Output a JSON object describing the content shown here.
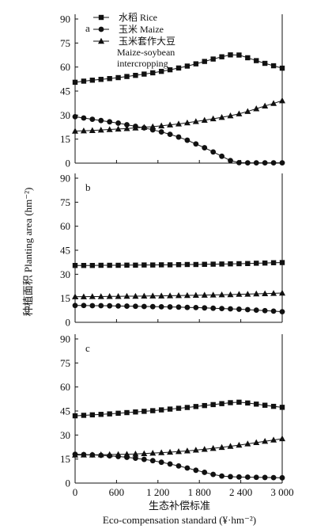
{
  "chart_data": {
    "type": "line",
    "ylabel": "种植面积 Planting area (hm⁻²)",
    "xlabel_cn": "生态补偿标准",
    "xlabel_en": "Eco-compensation standard (¥·hm⁻²)",
    "x_ticks": [
      "0",
      "600",
      "1 200",
      "1 800",
      "2 400",
      "3 000"
    ],
    "x_tick_values": [
      0,
      600,
      1200,
      1800,
      2400,
      3000
    ],
    "xlim": [
      0,
      3000
    ],
    "ylim": [
      0,
      90
    ],
    "y_ticks": [
      "0",
      "15",
      "30",
      "45",
      "60",
      "75",
      "90"
    ],
    "y_tick_values": [
      0,
      15,
      30,
      45,
      60,
      75,
      90
    ],
    "legend": {
      "placement": "top-left",
      "entries": [
        {
          "label": "水稻 Rice",
          "marker": "square"
        },
        {
          "label": "玉米 Maize",
          "marker": "circle"
        },
        {
          "label_line1": "玉米套作大豆",
          "label_line2": "Maize-soybean",
          "label_line3": "intercropping",
          "marker": "triangle"
        }
      ]
    },
    "x": [
      0,
      125,
      250,
      375,
      500,
      625,
      750,
      875,
      1000,
      1125,
      1250,
      1375,
      1500,
      1625,
      1750,
      1875,
      2000,
      2125,
      2250,
      2375,
      2500,
      2625,
      2750,
      2875,
      3000
    ],
    "panels": [
      {
        "letter": "a",
        "series": [
          {
            "name": "水稻 Rice",
            "marker": "square",
            "values": [
              50.5,
              51.2,
              51.8,
              52.3,
              52.8,
              53.4,
              54.1,
              54.8,
              55.6,
              56.4,
              57.3,
              58.3,
              59.4,
              60.6,
              62.0,
              63.5,
              65.0,
              66.4,
              67.6,
              67.5,
              65.8,
              64.0,
              62.3,
              60.8,
              59.3
            ]
          },
          {
            "name": "玉米 Maize",
            "marker": "circle",
            "values": [
              29.0,
              28.2,
              27.4,
              26.6,
              25.8,
              25.0,
              24.0,
              23.0,
              22.0,
              20.8,
              19.5,
              18.0,
              16.3,
              14.3,
              12.0,
              9.6,
              7.0,
              4.3,
              1.6,
              0.3,
              0.2,
              0.2,
              0.2,
              0.2,
              0.2
            ]
          },
          {
            "name": "玉米套作大豆 Maize-soybean intercropping",
            "marker": "triangle",
            "values": [
              20.0,
              20.2,
              20.4,
              20.7,
              21.0,
              21.3,
              21.6,
              22.0,
              22.4,
              22.8,
              23.3,
              23.9,
              24.5,
              25.2,
              26.0,
              26.8,
              27.7,
              28.6,
              29.6,
              30.8,
              32.3,
              34.0,
              35.7,
              37.3,
              39.0
            ]
          }
        ]
      },
      {
        "letter": "b",
        "series": [
          {
            "name": "水稻 Rice",
            "marker": "square",
            "values": [
              35.5,
              35.5,
              35.5,
              35.6,
              35.6,
              35.6,
              35.7,
              35.7,
              35.8,
              35.8,
              35.9,
              35.9,
              36.0,
              36.1,
              36.1,
              36.2,
              36.3,
              36.4,
              36.5,
              36.6,
              36.7,
              36.9,
              37.0,
              37.2,
              37.3
            ]
          },
          {
            "name": "玉米 Maize",
            "marker": "circle",
            "values": [
              10.5,
              10.5,
              10.4,
              10.4,
              10.3,
              10.2,
              10.1,
              10.0,
              9.9,
              9.8,
              9.7,
              9.6,
              9.5,
              9.3,
              9.2,
              9.0,
              8.8,
              8.6,
              8.4,
              8.2,
              7.9,
              7.6,
              7.3,
              7.0,
              6.6
            ]
          },
          {
            "name": "玉米套作大豆 Maize-soybean intercropping",
            "marker": "triangle",
            "values": [
              16.0,
              16.0,
              16.1,
              16.1,
              16.2,
              16.2,
              16.3,
              16.3,
              16.4,
              16.5,
              16.5,
              16.6,
              16.7,
              16.8,
              16.9,
              17.0,
              17.1,
              17.2,
              17.3,
              17.5,
              17.6,
              17.8,
              17.9,
              18.1,
              18.3
            ]
          }
        ]
      },
      {
        "letter": "c",
        "series": [
          {
            "name": "水稻 Rice",
            "marker": "square",
            "values": [
              42.0,
              42.3,
              42.6,
              42.9,
              43.2,
              43.6,
              44.0,
              44.4,
              44.8,
              45.2,
              45.7,
              46.2,
              46.7,
              47.2,
              47.8,
              48.4,
              49.0,
              49.6,
              50.2,
              50.5,
              50.0,
              49.3,
              48.6,
              47.9,
              47.3
            ]
          },
          {
            "name": "玉米 Maize",
            "marker": "circle",
            "values": [
              18.0,
              17.8,
              17.6,
              17.3,
              17.0,
              16.6,
              16.1,
              15.5,
              14.8,
              14.0,
              13.0,
              11.9,
              10.7,
              9.4,
              8.0,
              6.7,
              5.4,
              4.4,
              4.0,
              3.8,
              3.7,
              3.6,
              3.5,
              3.4,
              3.3
            ]
          },
          {
            "name": "玉米套作大豆 Maize-soybean intercropping",
            "marker": "triangle",
            "values": [
              17.5,
              17.6,
              17.6,
              17.7,
              17.8,
              17.9,
              18.0,
              18.2,
              18.4,
              18.7,
              19.0,
              19.3,
              19.7,
              20.1,
              20.6,
              21.1,
              21.7,
              22.3,
              23.0,
              23.7,
              24.5,
              25.3,
              26.1,
              26.9,
              27.7
            ]
          }
        ]
      }
    ]
  }
}
